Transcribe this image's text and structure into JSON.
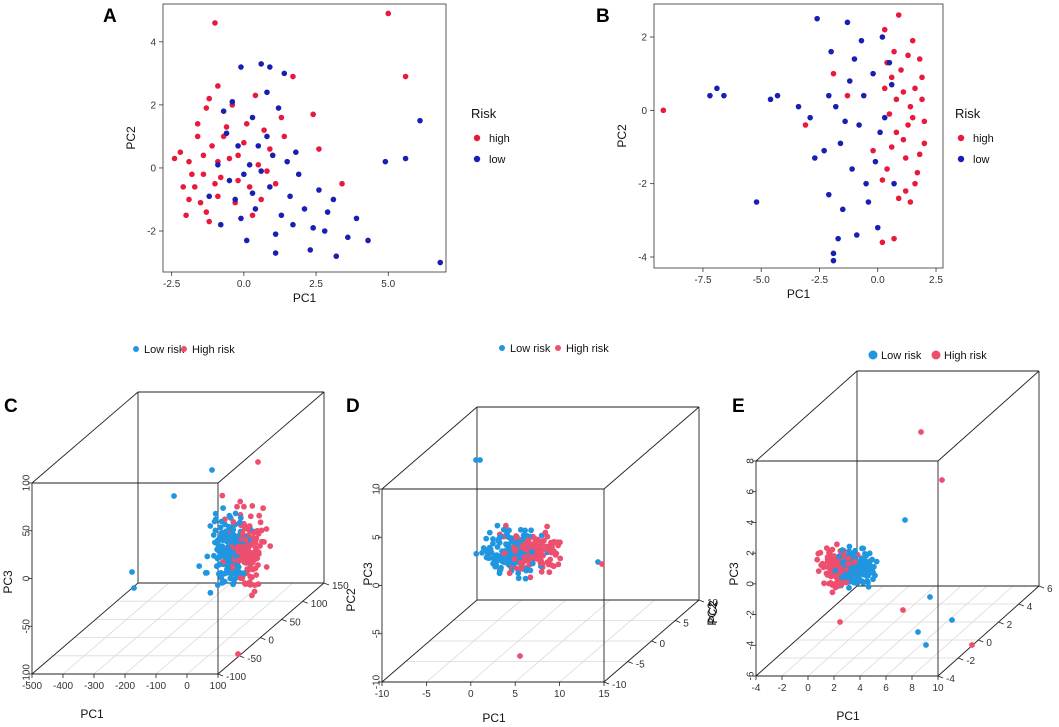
{
  "colors": {
    "high2d": "#e8193c",
    "low2d": "#1a1fb4",
    "low3d": "#2196e0",
    "high3d": "#ee4f6e",
    "axis": "#333333",
    "grid": "#d9d9d9"
  },
  "chart_data": [
    {
      "panel": "A",
      "type": "scatter",
      "xlabel": "PC1",
      "ylabel": "PC2",
      "xlim": [
        -2.8,
        7.0
      ],
      "ylim": [
        -3.3,
        5.2
      ],
      "xticks": [
        "-2.5",
        "0.0",
        "2.5",
        "5.0"
      ],
      "xtick_values": [
        -2.5,
        0,
        2.5,
        5
      ],
      "yticks": [
        "-2",
        "0",
        "2",
        "4"
      ],
      "ytick_values": [
        -2,
        0,
        2,
        4
      ],
      "legend_title": "Risk",
      "legend": [
        "high",
        "low"
      ],
      "series": [
        {
          "name": "high",
          "points": [
            [
              -1.0,
              4.6
            ],
            [
              5.0,
              4.9
            ],
            [
              5.6,
              2.9
            ],
            [
              -0.9,
              2.6
            ],
            [
              -1.3,
              1.9
            ],
            [
              1.7,
              2.9
            ],
            [
              0.4,
              2.3
            ],
            [
              -1.6,
              1.0
            ],
            [
              -2.2,
              0.5
            ],
            [
              -1.9,
              0.2
            ],
            [
              -1.4,
              -0.2
            ],
            [
              -1.7,
              -0.6
            ],
            [
              -0.9,
              -0.9
            ],
            [
              -0.5,
              0.3
            ],
            [
              0.1,
              1.4
            ],
            [
              0.9,
              0.6
            ],
            [
              1.4,
              1.0
            ],
            [
              -0.3,
              -1.1
            ],
            [
              -2.0,
              -1.5
            ],
            [
              -1.2,
              -1.7
            ],
            [
              0.2,
              -0.6
            ],
            [
              0.8,
              -0.1
            ],
            [
              -0.6,
              1.3
            ],
            [
              -1.8,
              -0.2
            ],
            [
              -1.1,
              0.7
            ],
            [
              2.6,
              0.6
            ],
            [
              2.4,
              1.7
            ],
            [
              3.4,
              -0.5
            ],
            [
              -0.2,
              0.4
            ],
            [
              -1.5,
              -1.1
            ],
            [
              -0.8,
              -0.3
            ],
            [
              0.5,
              0.1
            ],
            [
              1.1,
              -0.5
            ],
            [
              -2.4,
              0.3
            ],
            [
              -0.4,
              2.0
            ],
            [
              0.3,
              -1.5
            ],
            [
              -1.3,
              -1.4
            ],
            [
              -0.7,
              1.0
            ],
            [
              -1.9,
              -1.0
            ],
            [
              -1.4,
              0.4
            ],
            [
              -0.2,
              -0.4
            ],
            [
              0.6,
              -1.0
            ],
            [
              -2.1,
              -0.6
            ],
            [
              -1.0,
              -0.5
            ],
            [
              0.0,
              0.8
            ],
            [
              -0.9,
              0.2
            ],
            [
              -1.6,
              1.4
            ],
            [
              1.3,
              1.6
            ],
            [
              0.7,
              1.2
            ],
            [
              -1.2,
              2.2
            ]
          ]
        },
        {
          "name": "low",
          "points": [
            [
              -0.1,
              3.2
            ],
            [
              0.6,
              3.3
            ],
            [
              0.9,
              3.2
            ],
            [
              1.4,
              3.0
            ],
            [
              0.8,
              2.4
            ],
            [
              -0.4,
              2.1
            ],
            [
              1.2,
              1.9
            ],
            [
              0.3,
              1.6
            ],
            [
              -0.6,
              1.1
            ],
            [
              0.5,
              0.7
            ],
            [
              1.0,
              0.4
            ],
            [
              1.8,
              0.5
            ],
            [
              0.2,
              0.1
            ],
            [
              -0.5,
              -0.4
            ],
            [
              0.9,
              -0.6
            ],
            [
              1.6,
              -0.9
            ],
            [
              -0.3,
              -1.0
            ],
            [
              0.4,
              -1.3
            ],
            [
              1.3,
              -1.5
            ],
            [
              2.1,
              -1.3
            ],
            [
              2.6,
              -0.7
            ],
            [
              3.1,
              -1.0
            ],
            [
              3.9,
              -1.6
            ],
            [
              4.3,
              -2.3
            ],
            [
              2.8,
              -2.0
            ],
            [
              3.6,
              -2.2
            ],
            [
              2.3,
              -2.6
            ],
            [
              1.1,
              -2.1
            ],
            [
              0.1,
              -2.3
            ],
            [
              -0.8,
              -1.8
            ],
            [
              4.9,
              0.2
            ],
            [
              5.6,
              0.3
            ],
            [
              6.1,
              1.5
            ],
            [
              6.8,
              -3.0
            ],
            [
              1.1,
              -2.7
            ],
            [
              -0.7,
              1.8
            ],
            [
              0.0,
              -0.2
            ],
            [
              -1.2,
              -0.9
            ],
            [
              0.6,
              -0.1
            ],
            [
              1.5,
              0.2
            ],
            [
              2.4,
              -1.9
            ],
            [
              3.2,
              -2.8
            ],
            [
              -0.2,
              0.7
            ],
            [
              0.8,
              1.0
            ],
            [
              1.9,
              -0.2
            ],
            [
              2.9,
              -1.4
            ],
            [
              0.3,
              -0.8
            ],
            [
              -0.9,
              0.1
            ],
            [
              -0.1,
              -1.6
            ],
            [
              1.7,
              -1.8
            ]
          ]
        }
      ]
    },
    {
      "panel": "B",
      "type": "scatter",
      "xlabel": "PC1",
      "ylabel": "PC2",
      "xlim": [
        -9.6,
        2.8
      ],
      "ylim": [
        -4.3,
        2.9
      ],
      "xticks": [
        "-7.5",
        "-5.0",
        "-2.5",
        "0.0",
        "2.5"
      ],
      "xtick_values": [
        -7.5,
        -5,
        -2.5,
        0,
        2.5
      ],
      "yticks": [
        "-4",
        "-2",
        "0",
        "2"
      ],
      "ytick_values": [
        -4,
        -2,
        0,
        2
      ],
      "legend_title": "Risk",
      "legend": [
        "high",
        "low"
      ],
      "series": [
        {
          "name": "high",
          "points": [
            [
              -9.2,
              0.0
            ],
            [
              0.9,
              2.6
            ],
            [
              0.3,
              2.2
            ],
            [
              1.3,
              1.5
            ],
            [
              1.8,
              1.4
            ],
            [
              0.6,
              0.9
            ],
            [
              1.1,
              0.5
            ],
            [
              1.9,
              0.3
            ],
            [
              1.5,
              -0.2
            ],
            [
              0.8,
              -0.6
            ],
            [
              2.0,
              -0.9
            ],
            [
              1.2,
              -1.3
            ],
            [
              0.4,
              -1.6
            ],
            [
              1.6,
              -2.0
            ],
            [
              0.9,
              -2.4
            ],
            [
              1.4,
              -2.5
            ],
            [
              0.7,
              -3.5
            ],
            [
              0.2,
              -3.6
            ],
            [
              1.7,
              -1.7
            ],
            [
              0.5,
              -0.1
            ],
            [
              1.0,
              1.1
            ],
            [
              1.9,
              0.9
            ],
            [
              0.3,
              0.6
            ],
            [
              1.3,
              -0.4
            ],
            [
              0.6,
              -1.0
            ],
            [
              -1.3,
              0.4
            ],
            [
              -1.9,
              1.0
            ],
            [
              -3.1,
              -0.4
            ],
            [
              1.5,
              1.9
            ],
            [
              0.7,
              1.6
            ],
            [
              1.1,
              -0.8
            ],
            [
              1.8,
              -1.2
            ],
            [
              0.2,
              -1.9
            ],
            [
              1.4,
              0.1
            ],
            [
              0.8,
              0.3
            ],
            [
              2.0,
              -0.3
            ],
            [
              -0.2,
              -1.1
            ],
            [
              1.6,
              0.6
            ],
            [
              0.4,
              1.3
            ],
            [
              1.2,
              -2.2
            ]
          ]
        },
        {
          "name": "low",
          "points": [
            [
              -2.6,
              2.5
            ],
            [
              -1.3,
              2.4
            ],
            [
              -2.0,
              1.6
            ],
            [
              -0.7,
              1.9
            ],
            [
              0.5,
              1.3
            ],
            [
              -0.2,
              1.0
            ],
            [
              -1.2,
              0.8
            ],
            [
              -2.1,
              0.4
            ],
            [
              -2.9,
              -0.2
            ],
            [
              -3.4,
              0.1
            ],
            [
              -4.3,
              0.4
            ],
            [
              -4.6,
              0.3
            ],
            [
              -6.9,
              0.6
            ],
            [
              -7.2,
              0.4
            ],
            [
              -6.6,
              0.4
            ],
            [
              -5.2,
              -2.5
            ],
            [
              -0.8,
              -0.4
            ],
            [
              -1.6,
              -0.9
            ],
            [
              0.1,
              -0.6
            ],
            [
              -2.3,
              -1.1
            ],
            [
              -1.1,
              -1.6
            ],
            [
              -0.5,
              -2.0
            ],
            [
              -2.1,
              -2.3
            ],
            [
              -1.7,
              -3.5
            ],
            [
              -1.9,
              -3.9
            ],
            [
              -1.5,
              -2.7
            ],
            [
              -0.9,
              -3.4
            ],
            [
              0.0,
              -3.2
            ],
            [
              0.7,
              -2.0
            ],
            [
              -0.4,
              -2.5
            ],
            [
              -1.9,
              -4.1
            ],
            [
              0.3,
              -0.2
            ],
            [
              -0.6,
              0.4
            ],
            [
              -1.4,
              -0.3
            ],
            [
              0.6,
              0.7
            ],
            [
              -0.1,
              -1.4
            ],
            [
              -2.7,
              -1.3
            ],
            [
              -1.0,
              1.4
            ],
            [
              0.2,
              2.0
            ],
            [
              -1.8,
              0.1
            ]
          ]
        }
      ]
    },
    {
      "panel": "C",
      "type": "scatter3d",
      "xlabel": "PC1",
      "ylabel": "PC2",
      "zlabel": "PC3",
      "xticks": [
        "-500",
        "-400",
        "-300",
        "-200",
        "-100",
        "0",
        "100"
      ],
      "yticks": [
        "-100",
        "-50",
        "0",
        "50",
        "100",
        "150"
      ],
      "zticks": [
        "-100",
        "-50",
        "0",
        "50",
        "100"
      ],
      "legend": [
        "Low risk",
        "High risk"
      ]
    },
    {
      "panel": "D",
      "type": "scatter3d",
      "xlabel": "PC1",
      "ylabel": "PC2",
      "zlabel": "PC3",
      "xticks": [
        "-10",
        "-5",
        "0",
        "5",
        "10",
        "15"
      ],
      "yticks": [
        "-10",
        "-5",
        "0",
        "5",
        "10"
      ],
      "zticks": [
        "-10",
        "-5",
        "0",
        "5",
        "10"
      ],
      "legend": [
        "Low risk",
        "High risk"
      ]
    },
    {
      "panel": "E",
      "type": "scatter3d",
      "xlabel": "PC1",
      "ylabel": "PC2",
      "zlabel": "PC3",
      "xticks": [
        "-4",
        "-2",
        "0",
        "2",
        "4",
        "6",
        "8",
        "10"
      ],
      "yticks": [
        "-4",
        "-2",
        "0",
        "2",
        "4",
        "6"
      ],
      "zticks": [
        "-6",
        "-4",
        "-2",
        "0",
        "2",
        "4",
        "6",
        "8"
      ],
      "legend": [
        "Low risk",
        "High risk"
      ]
    }
  ]
}
